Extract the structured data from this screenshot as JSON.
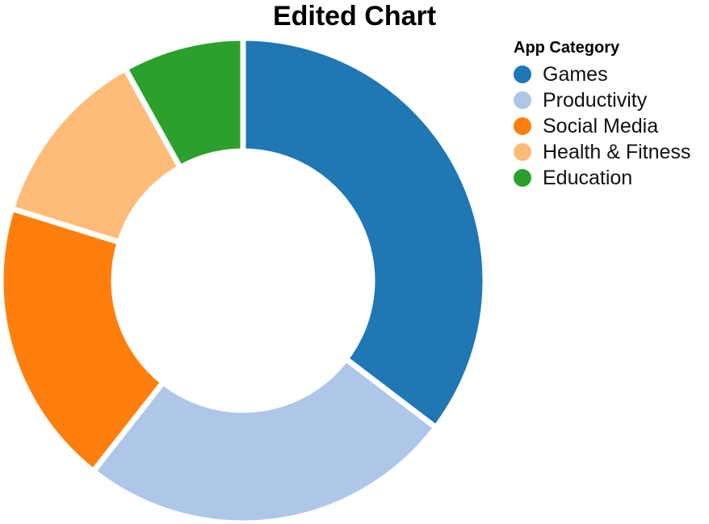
{
  "chart_data": {
    "type": "pie",
    "title": "Edited Chart",
    "legend_title": "App Category",
    "legend_position": "top-right",
    "donut": true,
    "categories": [
      "Games",
      "Productivity",
      "Social Media",
      "Health & Fitness",
      "Education"
    ],
    "values": [
      35,
      25,
      19,
      12,
      8
    ],
    "colors": [
      "#1f77b4",
      "#aec7e8",
      "#ff7f0e",
      "#ffbb78",
      "#2ca02c"
    ]
  }
}
